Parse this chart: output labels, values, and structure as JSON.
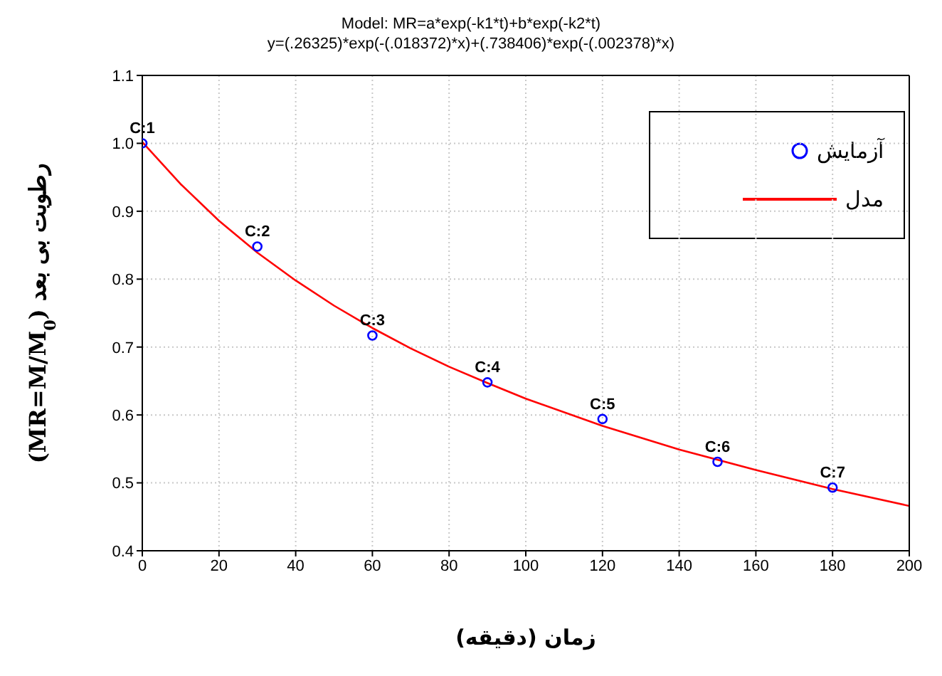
{
  "chart_data": {
    "type": "scatter",
    "title": "Model: MR=a*exp(-k1*t)+b*exp(-k2*t)",
    "subtitle": "y=(.26325)*exp(-(.018372)*x)+(.738406)*exp(-(.002378)*x)",
    "xlabel": "زمان (دقیقه)",
    "ylabel": "(MR=M/M$_{0}$) رطوبت بی بعد",
    "x": [
      0,
      30,
      60,
      90,
      120,
      150,
      180
    ],
    "series": [
      {
        "name": "آزمایش",
        "color": "#0000ff",
        "marker": "circle",
        "values": [
          1.0,
          0.848,
          0.717,
          0.648,
          0.594,
          0.531,
          0.493
        ]
      },
      {
        "name": "مدل",
        "type": "line",
        "color": "#ff0000",
        "marker": "none",
        "line_style": "solid",
        "x": [
          0,
          10,
          20,
          30,
          40,
          50,
          60,
          70,
          80,
          90,
          100,
          120,
          140,
          160,
          180,
          200
        ],
        "values": [
          1.002,
          0.94,
          0.886,
          0.839,
          0.798,
          0.761,
          0.728,
          0.698,
          0.671,
          0.647,
          0.624,
          0.584,
          0.549,
          0.519,
          0.491,
          0.466
        ]
      }
    ],
    "annotations": [
      {
        "text": "C:1",
        "x": 0,
        "y": 1.0
      },
      {
        "text": "C:2",
        "x": 30,
        "y": 0.848
      },
      {
        "text": "C:3",
        "x": 60,
        "y": 0.717
      },
      {
        "text": "C:4",
        "x": 90,
        "y": 0.648
      },
      {
        "text": "C:5",
        "x": 120,
        "y": 0.594
      },
      {
        "text": "C:6",
        "x": 150,
        "y": 0.531
      },
      {
        "text": "C:7",
        "x": 180,
        "y": 0.493
      }
    ],
    "xlim": [
      0,
      200
    ],
    "xticks": [
      0,
      20,
      40,
      60,
      80,
      100,
      120,
      140,
      160,
      180,
      200
    ],
    "ylim": [
      0.4,
      1.1
    ],
    "yticks": [
      0.4,
      0.5,
      0.6,
      0.7,
      0.8,
      0.9,
      {
        "value": 1,
        "label": "1.0"
      },
      1.1
    ],
    "grid": true,
    "legend": "top right"
  }
}
